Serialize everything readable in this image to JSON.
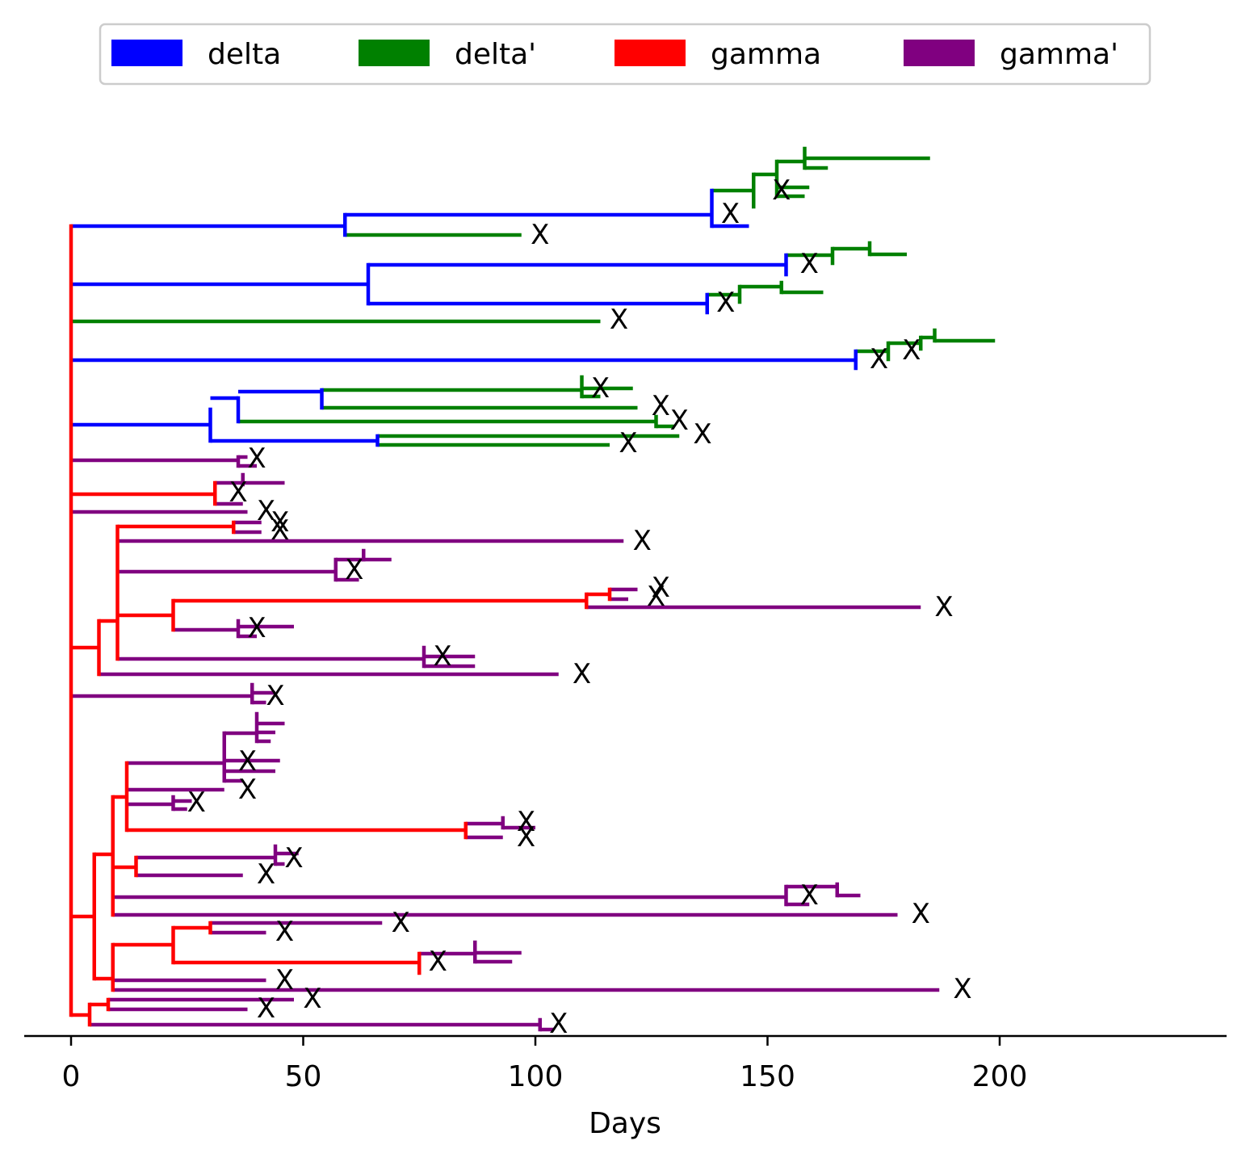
{
  "chart_data": {
    "type": "phylogenetic-tree",
    "xlabel": "Days",
    "ylabel": "",
    "title": "",
    "xlim": [
      -10,
      245
    ],
    "xticks": [
      0,
      50,
      100,
      150,
      200
    ],
    "legend": {
      "placement": "top-center",
      "entries": [
        {
          "label": "delta",
          "color": "#0000ff"
        },
        {
          "label": "delta'",
          "color": "#008000"
        },
        {
          "label": "gamma",
          "color": "#ff0000"
        },
        {
          "label": "gamma'",
          "color": "#800080"
        }
      ]
    },
    "extinction_marker": "X",
    "colors": {
      "delta": "#0000ff",
      "delta'": "#008000",
      "gamma": "#ff0000",
      "gamma'": "#800080"
    },
    "horizontal_branches": [
      {
        "type": "delta",
        "y": 280,
        "x0": 0,
        "x1": 59
      },
      {
        "type": "delta",
        "y": 266,
        "x0": 59,
        "x1": 138
      },
      {
        "type": "delta",
        "y": 280,
        "x0": 138,
        "x1": 146
      },
      {
        "type": "delta'",
        "y": 236,
        "x0": 138,
        "x1": 147
      },
      {
        "type": "delta'",
        "y": 216,
        "x0": 147,
        "x1": 152
      },
      {
        "type": "delta'",
        "y": 200,
        "x0": 152,
        "x1": 158
      },
      {
        "type": "delta'",
        "y": 196,
        "x0": 158,
        "x1": 185
      },
      {
        "type": "delta'",
        "y": 208,
        "x0": 158,
        "x1": 163
      },
      {
        "type": "delta'",
        "y": 232,
        "x0": 152,
        "x1": 159
      },
      {
        "type": "delta'",
        "y": 243,
        "x0": 152,
        "x1": 158
      },
      {
        "type": "delta'",
        "y": 291,
        "x0": 59,
        "x1": 97
      },
      {
        "type": "delta",
        "y": 352,
        "x0": 0,
        "x1": 64
      },
      {
        "type": "delta",
        "y": 328,
        "x0": 64,
        "x1": 154
      },
      {
        "type": "delta'",
        "y": 316,
        "x0": 154,
        "x1": 164
      },
      {
        "type": "delta'",
        "y": 308,
        "x0": 164,
        "x1": 172
      },
      {
        "type": "delta'",
        "y": 315,
        "x0": 172,
        "x1": 180
      },
      {
        "type": "delta",
        "y": 376,
        "x0": 64,
        "x1": 137
      },
      {
        "type": "delta'",
        "y": 365,
        "x0": 137,
        "x1": 144
      },
      {
        "type": "delta'",
        "y": 355,
        "x0": 144,
        "x1": 153
      },
      {
        "type": "delta'",
        "y": 362,
        "x0": 153,
        "x1": 162
      },
      {
        "type": "delta'",
        "y": 398,
        "x0": 0,
        "x1": 114
      },
      {
        "type": "delta",
        "y": 446,
        "x0": 0,
        "x1": 169
      },
      {
        "type": "delta'",
        "y": 435,
        "x0": 169,
        "x1": 176
      },
      {
        "type": "delta'",
        "y": 425,
        "x0": 176,
        "x1": 183
      },
      {
        "type": "delta'",
        "y": 418,
        "x0": 183,
        "x1": 186
      },
      {
        "type": "delta'",
        "y": 422,
        "x0": 186,
        "x1": 199
      },
      {
        "type": "delta",
        "y": 526,
        "x0": 0,
        "x1": 30
      },
      {
        "type": "delta",
        "y": 493,
        "x0": 30,
        "x1": 36
      },
      {
        "type": "delta",
        "y": 485,
        "x0": 36,
        "x1": 54
      },
      {
        "type": "delta'",
        "y": 483,
        "x0": 54,
        "x1": 110
      },
      {
        "type": "delta'",
        "y": 481,
        "x0": 110,
        "x1": 121
      },
      {
        "type": "delta'",
        "y": 491,
        "x0": 110,
        "x1": 114
      },
      {
        "type": "delta'",
        "y": 505,
        "x0": 54,
        "x1": 122
      },
      {
        "type": "delta'",
        "y": 522,
        "x0": 36,
        "x1": 126
      },
      {
        "type": "delta'",
        "y": 528,
        "x0": 126,
        "x1": 130
      },
      {
        "type": "delta",
        "y": 546,
        "x0": 30,
        "x1": 66
      },
      {
        "type": "delta'",
        "y": 540,
        "x0": 66,
        "x1": 131
      },
      {
        "type": "delta'",
        "y": 551,
        "x0": 66,
        "x1": 116
      },
      {
        "type": "gamma'",
        "y": 570,
        "x0": 0,
        "x1": 36
      },
      {
        "type": "gamma'",
        "y": 566,
        "x0": 36,
        "x1": 38
      },
      {
        "type": "gamma'",
        "y": 577,
        "x0": 36,
        "x1": 40
      },
      {
        "type": "gamma",
        "y": 612,
        "x0": 0,
        "x1": 31
      },
      {
        "type": "gamma'",
        "y": 598,
        "x0": 31,
        "x1": 46
      },
      {
        "type": "gamma'",
        "y": 624,
        "x0": 31,
        "x1": 37
      },
      {
        "type": "gamma'",
        "y": 634,
        "x0": 0,
        "x1": 38
      },
      {
        "type": "gamma",
        "y": 802,
        "x0": 0,
        "x1": 6
      },
      {
        "type": "gamma",
        "y": 769,
        "x0": 6,
        "x1": 10
      },
      {
        "type": "gamma",
        "y": 652,
        "x0": 10,
        "x1": 35
      },
      {
        "type": "gamma'",
        "y": 647,
        "x0": 35,
        "x1": 41
      },
      {
        "type": "gamma'",
        "y": 659,
        "x0": 35,
        "x1": 41
      },
      {
        "type": "gamma'",
        "y": 670,
        "x0": 10,
        "x1": 119
      },
      {
        "type": "gamma'",
        "y": 708,
        "x0": 10,
        "x1": 57
      },
      {
        "type": "gamma'",
        "y": 693,
        "x0": 57,
        "x1": 69
      },
      {
        "type": "gamma'",
        "y": 718,
        "x0": 57,
        "x1": 62
      },
      {
        "type": "gamma",
        "y": 762,
        "x0": 10,
        "x1": 22
      },
      {
        "type": "gamma",
        "y": 744,
        "x0": 22,
        "x1": 111
      },
      {
        "type": "gamma",
        "y": 736,
        "x0": 111,
        "x1": 116
      },
      {
        "type": "gamma'",
        "y": 730,
        "x0": 116,
        "x1": 122
      },
      {
        "type": "gamma'",
        "y": 742,
        "x0": 116,
        "x1": 120
      },
      {
        "type": "gamma'",
        "y": 752,
        "x0": 111,
        "x1": 183
      },
      {
        "type": "gamma'",
        "y": 780,
        "x0": 22,
        "x1": 36
      },
      {
        "type": "gamma'",
        "y": 776,
        "x0": 36,
        "x1": 48
      },
      {
        "type": "gamma'",
        "y": 788,
        "x0": 36,
        "x1": 40
      },
      {
        "type": "gamma'",
        "y": 816,
        "x0": 10,
        "x1": 76
      },
      {
        "type": "gamma'",
        "y": 813,
        "x0": 76,
        "x1": 87
      },
      {
        "type": "gamma'",
        "y": 825,
        "x0": 76,
        "x1": 87
      },
      {
        "type": "gamma'",
        "y": 835,
        "x0": 6,
        "x1": 105
      },
      {
        "type": "gamma'",
        "y": 862,
        "x0": 0,
        "x1": 39
      },
      {
        "type": "gamma'",
        "y": 858,
        "x0": 39,
        "x1": 44
      },
      {
        "type": "gamma'",
        "y": 870,
        "x0": 39,
        "x1": 42
      },
      {
        "type": "gamma",
        "y": 1135,
        "x0": 0,
        "x1": 5
      },
      {
        "type": "gamma",
        "y": 1058,
        "x0": 5,
        "x1": 9
      },
      {
        "type": "gamma",
        "y": 1074,
        "x0": 9,
        "x1": 14
      },
      {
        "type": "gamma",
        "y": 987,
        "x0": 9,
        "x1": 12
      },
      {
        "type": "gamma'",
        "y": 945,
        "x0": 12,
        "x1": 33
      },
      {
        "type": "gamma'",
        "y": 908,
        "x0": 33,
        "x1": 40
      },
      {
        "type": "gamma'",
        "y": 896,
        "x0": 40,
        "x1": 46
      },
      {
        "type": "gamma'",
        "y": 907,
        "x0": 40,
        "x1": 44
      },
      {
        "type": "gamma'",
        "y": 918,
        "x0": 40,
        "x1": 43
      },
      {
        "type": "gamma'",
        "y": 942,
        "x0": 33,
        "x1": 45
      },
      {
        "type": "gamma'",
        "y": 955,
        "x0": 33,
        "x1": 44
      },
      {
        "type": "gamma'",
        "y": 967,
        "x0": 33,
        "x1": 37
      },
      {
        "type": "gamma'",
        "y": 978,
        "x0": 12,
        "x1": 33
      },
      {
        "type": "gamma'",
        "y": 996,
        "x0": 12,
        "x1": 22
      },
      {
        "type": "gamma'",
        "y": 992,
        "x0": 22,
        "x1": 26
      },
      {
        "type": "gamma'",
        "y": 1002,
        "x0": 22,
        "x1": 25
      },
      {
        "type": "gamma",
        "y": 1028,
        "x0": 12,
        "x1": 85
      },
      {
        "type": "gamma'",
        "y": 1020,
        "x0": 85,
        "x1": 93
      },
      {
        "type": "gamma'",
        "y": 1025,
        "x0": 93,
        "x1": 100
      },
      {
        "type": "gamma'",
        "y": 1037,
        "x0": 85,
        "x1": 93
      },
      {
        "type": "gamma'",
        "y": 1062,
        "x0": 14,
        "x1": 44
      },
      {
        "type": "gamma'",
        "y": 1057,
        "x0": 44,
        "x1": 49
      },
      {
        "type": "gamma'",
        "y": 1070,
        "x0": 44,
        "x1": 46
      },
      {
        "type": "gamma'",
        "y": 1084,
        "x0": 14,
        "x1": 37
      },
      {
        "type": "gamma'",
        "y": 1111,
        "x0": 9,
        "x1": 154
      },
      {
        "type": "gamma'",
        "y": 1098,
        "x0": 154,
        "x1": 165
      },
      {
        "type": "gamma'",
        "y": 1109,
        "x0": 165,
        "x1": 170
      },
      {
        "type": "gamma'",
        "y": 1120,
        "x0": 154,
        "x1": 159
      },
      {
        "type": "gamma'",
        "y": 1133,
        "x0": 9,
        "x1": 178
      },
      {
        "type": "gamma",
        "y": 1212,
        "x0": 5,
        "x1": 9
      },
      {
        "type": "gamma",
        "y": 1170,
        "x0": 9,
        "x1": 22
      },
      {
        "type": "gamma",
        "y": 1149,
        "x0": 22,
        "x1": 30
      },
      {
        "type": "gamma'",
        "y": 1143,
        "x0": 30,
        "x1": 67
      },
      {
        "type": "gamma'",
        "y": 1155,
        "x0": 30,
        "x1": 42
      },
      {
        "type": "gamma",
        "y": 1192,
        "x0": 22,
        "x1": 75
      },
      {
        "type": "gamma'",
        "y": 1181,
        "x0": 75,
        "x1": 87
      },
      {
        "type": "gamma'",
        "y": 1180,
        "x0": 87,
        "x1": 97
      },
      {
        "type": "gamma'",
        "y": 1191,
        "x0": 87,
        "x1": 95
      },
      {
        "type": "gamma'",
        "y": 1214,
        "x0": 9,
        "x1": 42
      },
      {
        "type": "gamma'",
        "y": 1226,
        "x0": 9,
        "x1": 187
      },
      {
        "type": "gamma",
        "y": 1257,
        "x0": 0,
        "x1": 4
      },
      {
        "type": "gamma",
        "y": 1244,
        "x0": 4,
        "x1": 8
      },
      {
        "type": "gamma'",
        "y": 1238,
        "x0": 8,
        "x1": 48
      },
      {
        "type": "gamma'",
        "y": 1250,
        "x0": 8,
        "x1": 38
      },
      {
        "type": "gamma'",
        "y": 1269,
        "x0": 4,
        "x1": 101
      },
      {
        "type": "gamma'",
        "y": 1275,
        "x0": 101,
        "x1": 104
      }
    ],
    "vertical_connectors": [
      {
        "type": "gamma",
        "x": 0,
        "y0": 280,
        "y1": 1257
      },
      {
        "type": "delta",
        "x": 59,
        "y0": 266,
        "y1": 291
      },
      {
        "type": "delta",
        "x": 138,
        "y0": 236,
        "y1": 280
      },
      {
        "type": "delta'",
        "x": 147,
        "y0": 216,
        "y1": 256
      },
      {
        "type": "delta'",
        "x": 152,
        "y0": 200,
        "y1": 243
      },
      {
        "type": "delta'",
        "x": 158,
        "y0": 184,
        "y1": 208
      },
      {
        "type": "delta",
        "x": 64,
        "y0": 328,
        "y1": 376
      },
      {
        "type": "delta",
        "x": 154,
        "y0": 316,
        "y1": 340
      },
      {
        "type": "delta'",
        "x": 164,
        "y0": 308,
        "y1": 326
      },
      {
        "type": "delta'",
        "x": 172,
        "y0": 301,
        "y1": 315
      },
      {
        "type": "delta",
        "x": 137,
        "y0": 365,
        "y1": 387
      },
      {
        "type": "delta'",
        "x": 144,
        "y0": 355,
        "y1": 374
      },
      {
        "type": "delta'",
        "x": 153,
        "y0": 350,
        "y1": 362
      },
      {
        "type": "delta",
        "x": 169,
        "y0": 435,
        "y1": 456
      },
      {
        "type": "delta'",
        "x": 176,
        "y0": 425,
        "y1": 445
      },
      {
        "type": "delta'",
        "x": 183,
        "y0": 418,
        "y1": 432
      },
      {
        "type": "delta'",
        "x": 186,
        "y0": 409,
        "y1": 422
      },
      {
        "type": "delta",
        "x": 30,
        "y0": 507,
        "y1": 546
      },
      {
        "type": "delta",
        "x": 36,
        "y0": 493,
        "y1": 522
      },
      {
        "type": "delta",
        "x": 54,
        "y0": 483,
        "y1": 505
      },
      {
        "type": "delta'",
        "x": 110,
        "y0": 467,
        "y1": 491
      },
      {
        "type": "delta'",
        "x": 126,
        "y0": 516,
        "y1": 528
      },
      {
        "type": "delta",
        "x": 66,
        "y0": 540,
        "y1": 551
      },
      {
        "type": "gamma'",
        "x": 36,
        "y0": 566,
        "y1": 577
      },
      {
        "type": "gamma",
        "x": 31,
        "y0": 598,
        "y1": 624
      },
      {
        "type": "gamma'",
        "x": 37,
        "y0": 588,
        "y1": 600
      },
      {
        "type": "gamma",
        "x": 6,
        "y0": 769,
        "y1": 835
      },
      {
        "type": "gamma",
        "x": 10,
        "y0": 652,
        "y1": 816
      },
      {
        "type": "gamma",
        "x": 35,
        "y0": 647,
        "y1": 659
      },
      {
        "type": "gamma'",
        "x": 57,
        "y0": 693,
        "y1": 718
      },
      {
        "type": "gamma'",
        "x": 63,
        "y0": 682,
        "y1": 693
      },
      {
        "type": "gamma",
        "x": 22,
        "y0": 744,
        "y1": 780
      },
      {
        "type": "gamma",
        "x": 111,
        "y0": 736,
        "y1": 752
      },
      {
        "type": "gamma",
        "x": 116,
        "y0": 730,
        "y1": 742
      },
      {
        "type": "gamma'",
        "x": 36,
        "y0": 769,
        "y1": 788
      },
      {
        "type": "gamma'",
        "x": 76,
        "y0": 802,
        "y1": 825
      },
      {
        "type": "gamma'",
        "x": 39,
        "y0": 848,
        "y1": 870
      },
      {
        "type": "gamma",
        "x": 5,
        "y0": 1058,
        "y1": 1212
      },
      {
        "type": "gamma",
        "x": 9,
        "y0": 987,
        "y1": 1133
      },
      {
        "type": "gamma",
        "x": 12,
        "y0": 945,
        "y1": 1028
      },
      {
        "type": "gamma'",
        "x": 33,
        "y0": 908,
        "y1": 967
      },
      {
        "type": "gamma'",
        "x": 40,
        "y0": 884,
        "y1": 918
      },
      {
        "type": "gamma'",
        "x": 22,
        "y0": 987,
        "y1": 1002
      },
      {
        "type": "gamma",
        "x": 85,
        "y0": 1020,
        "y1": 1037
      },
      {
        "type": "gamma'",
        "x": 93,
        "y0": 1013,
        "y1": 1025
      },
      {
        "type": "gamma",
        "x": 14,
        "y0": 1062,
        "y1": 1084
      },
      {
        "type": "gamma'",
        "x": 44,
        "y0": 1048,
        "y1": 1070
      },
      {
        "type": "gamma'",
        "x": 154,
        "y0": 1098,
        "y1": 1120
      },
      {
        "type": "gamma'",
        "x": 165,
        "y0": 1095,
        "y1": 1109
      },
      {
        "type": "gamma",
        "x": 9,
        "y0": 1170,
        "y1": 1226
      },
      {
        "type": "gamma",
        "x": 22,
        "y0": 1149,
        "y1": 1192
      },
      {
        "type": "gamma",
        "x": 30,
        "y0": 1143,
        "y1": 1155
      },
      {
        "type": "gamma",
        "x": 75,
        "y0": 1181,
        "y1": 1205
      },
      {
        "type": "gamma'",
        "x": 87,
        "y0": 1167,
        "y1": 1191
      },
      {
        "type": "gamma",
        "x": 4,
        "y0": 1244,
        "y1": 1269
      },
      {
        "type": "gamma",
        "x": 8,
        "y0": 1238,
        "y1": 1250
      },
      {
        "type": "gamma'",
        "x": 101,
        "y0": 1263,
        "y1": 1275
      }
    ],
    "extinction_markers": [
      {
        "x": 153,
        "y": 235
      },
      {
        "x": 142,
        "y": 264
      },
      {
        "x": 101,
        "y": 290
      },
      {
        "x": 159,
        "y": 326
      },
      {
        "x": 141,
        "y": 374
      },
      {
        "x": 118,
        "y": 395
      },
      {
        "x": 174,
        "y": 444
      },
      {
        "x": 181,
        "y": 433
      },
      {
        "x": 114,
        "y": 480
      },
      {
        "x": 127,
        "y": 502
      },
      {
        "x": 131,
        "y": 520
      },
      {
        "x": 136,
        "y": 537
      },
      {
        "x": 120,
        "y": 548
      },
      {
        "x": 40,
        "y": 567
      },
      {
        "x": 36,
        "y": 609
      },
      {
        "x": 42,
        "y": 632
      },
      {
        "x": 45,
        "y": 646
      },
      {
        "x": 45,
        "y": 656
      },
      {
        "x": 123,
        "y": 669
      },
      {
        "x": 61,
        "y": 705
      },
      {
        "x": 127,
        "y": 727
      },
      {
        "x": 126,
        "y": 738
      },
      {
        "x": 188,
        "y": 751
      },
      {
        "x": 40,
        "y": 777
      },
      {
        "x": 80,
        "y": 812
      },
      {
        "x": 110,
        "y": 834
      },
      {
        "x": 44,
        "y": 861
      },
      {
        "x": 38,
        "y": 942
      },
      {
        "x": 38,
        "y": 977
      },
      {
        "x": 27,
        "y": 993
      },
      {
        "x": 98,
        "y": 1017
      },
      {
        "x": 98,
        "y": 1036
      },
      {
        "x": 48,
        "y": 1062
      },
      {
        "x": 42,
        "y": 1082
      },
      {
        "x": 159,
        "y": 1108
      },
      {
        "x": 183,
        "y": 1131
      },
      {
        "x": 71,
        "y": 1142
      },
      {
        "x": 46,
        "y": 1153
      },
      {
        "x": 79,
        "y": 1190
      },
      {
        "x": 46,
        "y": 1213
      },
      {
        "x": 192,
        "y": 1224
      },
      {
        "x": 52,
        "y": 1236
      },
      {
        "x": 42,
        "y": 1248
      },
      {
        "x": 105,
        "y": 1267
      }
    ]
  }
}
